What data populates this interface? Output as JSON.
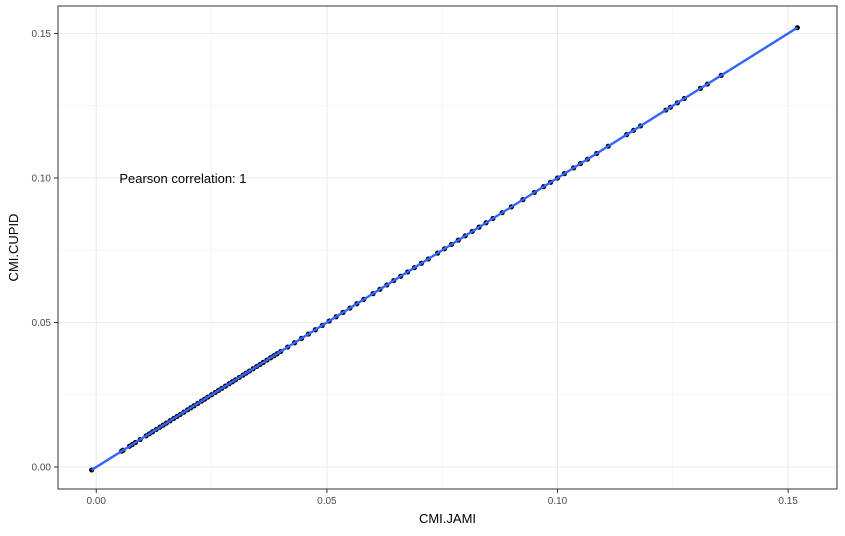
{
  "chart_data": {
    "type": "scatter",
    "title": "",
    "xlabel": "CMI.JAMI",
    "ylabel": "CMI.CUPID",
    "xlim": [
      -0.0083,
      0.1606
    ],
    "ylim": [
      -0.0076,
      0.1595
    ],
    "x_ticks": [
      0.0,
      0.05,
      0.1,
      0.15
    ],
    "x_tick_labels": [
      "0.00",
      "0.05",
      "0.10",
      "0.15"
    ],
    "y_ticks": [
      0.0,
      0.05,
      0.1,
      0.15
    ],
    "y_tick_labels": [
      "0.00",
      "0.05",
      "0.10",
      "0.15"
    ],
    "grid": true,
    "legend": "none",
    "annotation": {
      "text": "Pearson correlation: 1",
      "x": 0.005,
      "y": 0.1
    },
    "fit_line": {
      "x": [
        -0.001,
        0.152
      ],
      "y": [
        -0.001,
        0.152
      ],
      "color": "#3366ff"
    },
    "point_color": "#000000",
    "points": {
      "x": [
        -0.001,
        0.0055,
        0.0058,
        0.0072,
        0.0078,
        0.0085,
        0.0095,
        0.0108,
        0.0115,
        0.0122,
        0.013,
        0.0138,
        0.0145,
        0.0152,
        0.016,
        0.0168,
        0.0175,
        0.0182,
        0.019,
        0.0198,
        0.0205,
        0.0212,
        0.022,
        0.0228,
        0.0235,
        0.0242,
        0.025,
        0.0258,
        0.0265,
        0.0272,
        0.028,
        0.0288,
        0.0295,
        0.0302,
        0.031,
        0.0318,
        0.0325,
        0.0332,
        0.034,
        0.0348,
        0.0355,
        0.0362,
        0.037,
        0.0378,
        0.0385,
        0.0392,
        0.04,
        0.0415,
        0.043,
        0.0445,
        0.046,
        0.0475,
        0.049,
        0.0505,
        0.052,
        0.0535,
        0.055,
        0.0565,
        0.058,
        0.06,
        0.0615,
        0.063,
        0.0645,
        0.066,
        0.0675,
        0.069,
        0.0705,
        0.072,
        0.074,
        0.0755,
        0.077,
        0.0785,
        0.08,
        0.0815,
        0.083,
        0.0845,
        0.086,
        0.088,
        0.09,
        0.0925,
        0.095,
        0.097,
        0.0985,
        0.1,
        0.1015,
        0.1035,
        0.105,
        0.1065,
        0.1085,
        0.111,
        0.115,
        0.1165,
        0.118,
        0.1235,
        0.1245,
        0.126,
        0.1275,
        0.131,
        0.1325,
        0.1355,
        0.152
      ],
      "y": [
        -0.001,
        0.0055,
        0.0058,
        0.0072,
        0.0078,
        0.0085,
        0.0095,
        0.0108,
        0.0115,
        0.0122,
        0.013,
        0.0138,
        0.0145,
        0.0152,
        0.016,
        0.0168,
        0.0175,
        0.0182,
        0.019,
        0.0198,
        0.0205,
        0.0212,
        0.022,
        0.0228,
        0.0235,
        0.0242,
        0.025,
        0.0258,
        0.0265,
        0.0272,
        0.028,
        0.0288,
        0.0295,
        0.0302,
        0.031,
        0.0318,
        0.0325,
        0.0332,
        0.034,
        0.0348,
        0.0355,
        0.0362,
        0.037,
        0.0378,
        0.0385,
        0.0392,
        0.04,
        0.0415,
        0.043,
        0.0445,
        0.046,
        0.0475,
        0.049,
        0.0505,
        0.052,
        0.0535,
        0.055,
        0.0565,
        0.058,
        0.06,
        0.0615,
        0.063,
        0.0645,
        0.066,
        0.0675,
        0.069,
        0.0705,
        0.072,
        0.074,
        0.0755,
        0.077,
        0.0785,
        0.08,
        0.0815,
        0.083,
        0.0845,
        0.086,
        0.088,
        0.09,
        0.0925,
        0.095,
        0.097,
        0.0985,
        0.1,
        0.1015,
        0.1035,
        0.105,
        0.1065,
        0.1085,
        0.111,
        0.115,
        0.1165,
        0.118,
        0.1235,
        0.1245,
        0.126,
        0.1275,
        0.131,
        0.1325,
        0.1355,
        0.152
      ]
    }
  }
}
